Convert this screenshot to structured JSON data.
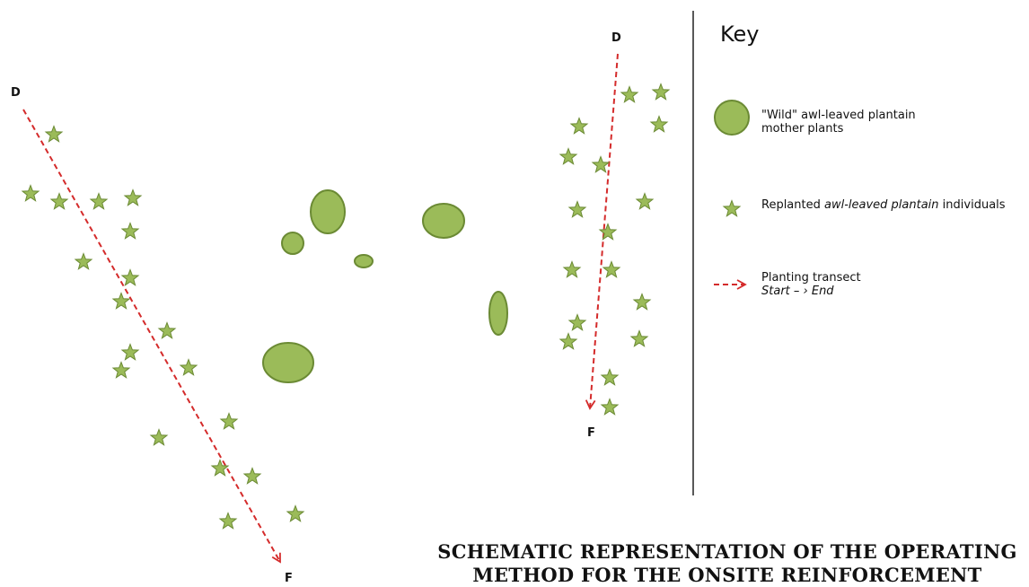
{
  "labels": {
    "left_start": "D",
    "left_end": "F",
    "right_start": "D",
    "right_end": "F"
  },
  "key": {
    "title": "Key",
    "wild_line1": "\"Wild\" awl-leaved plantain",
    "wild_line2": "mother plants",
    "replanted_prefix": "Replanted ",
    "replanted_italic": "awl-leaved plantain",
    "replanted_suffix": " individuals",
    "transect_line1": "Planting transect",
    "transect_line2": "Start – › End"
  },
  "title": {
    "line1": "SCHEMATIC REPRESENTATION OF THE OPERATING",
    "line2": "METHOD FOR THE ONSITE REINFORCEMENT"
  },
  "colors": {
    "plant_fill": "#9bbb59",
    "plant_stroke": "#6b8a34",
    "transect": "#d42b2b",
    "divider": "#222222"
  },
  "icons": {
    "mother_plant": "green-ellipse",
    "replanted": "green-star",
    "transect": "dashed-red-arrow"
  }
}
